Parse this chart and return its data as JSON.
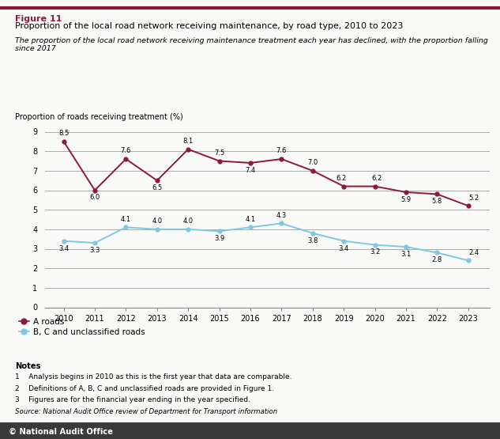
{
  "years": [
    2010,
    2011,
    2012,
    2013,
    2014,
    2015,
    2016,
    2017,
    2018,
    2019,
    2020,
    2021,
    2022,
    2023
  ],
  "a_roads": [
    8.5,
    6.0,
    7.6,
    6.5,
    8.1,
    7.5,
    7.4,
    7.6,
    7.0,
    6.2,
    6.2,
    5.9,
    5.8,
    5.2
  ],
  "bc_roads": [
    3.4,
    3.3,
    4.1,
    4.0,
    4.0,
    3.9,
    4.1,
    4.3,
    3.8,
    3.4,
    3.2,
    3.1,
    2.8,
    2.4
  ],
  "a_roads_color": "#8B1A3C",
  "bc_roads_color": "#7EC8E3",
  "figure_label": "Figure 11",
  "title_main": "Proportion of the local road network receiving maintenance, by road type, 2010 to 2023",
  "subtitle": "The proportion of the local road network receiving maintenance treatment each year has declined, with the proportion falling since 2017",
  "ylabel": "Proportion of roads receiving treatment (%)",
  "ylim": [
    0,
    9
  ],
  "yticks": [
    0,
    1,
    2,
    3,
    4,
    5,
    6,
    7,
    8,
    9
  ],
  "legend_a": "A roads",
  "legend_bc": "B, C and unclassified roads",
  "notes_header": "Notes",
  "notes": [
    "1    Analysis begins in 2010 as this is the first year that data are comparable.",
    "2    Definitions of A, B, C and unclassified roads are provided in Figure 1.",
    "3    Figures are for the financial year ending in the year specified."
  ],
  "source": "Source: National Audit Office review of Department for Transport information",
  "nao_footer": "© National Audit Office",
  "background_color": "#f9f9f7",
  "grid_color": "#aaaaaa",
  "border_top_color": "#8B1A3C",
  "footer_color": "#3a3a3a"
}
